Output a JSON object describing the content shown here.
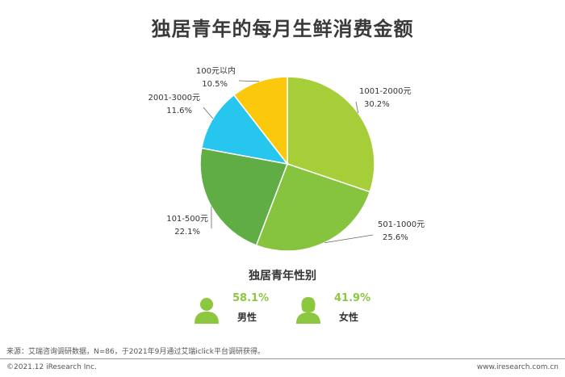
{
  "title": "独居青年的每月生鲜消费金额",
  "chart_data": {
    "type": "pie",
    "title": "独居青年的每月生鲜消费金额",
    "slices": [
      {
        "label": "1001-2000元",
        "value": 30.2,
        "value_label": "30.2%",
        "color": "#a6ce39"
      },
      {
        "label": "501-1000元",
        "value": 25.6,
        "value_label": "25.6%",
        "color": "#86c440"
      },
      {
        "label": "101-500元",
        "value": 22.1,
        "value_label": "22.1%",
        "color": "#5fad44"
      },
      {
        "label": "2001-3000元",
        "value": 11.6,
        "value_label": "11.6%",
        "color": "#26c6ee"
      },
      {
        "label": "100元以内",
        "value": 10.5,
        "value_label": "10.5%",
        "color": "#fcc80b"
      }
    ]
  },
  "gender": {
    "title": "独居青年性别",
    "male": {
      "percent": "58.1%",
      "label": "男性",
      "color": "#8dc63f",
      "icon": "male-person-icon"
    },
    "female": {
      "percent": "41.9%",
      "label": "女性",
      "color": "#8dc63f",
      "icon": "female-person-icon"
    }
  },
  "source": "来源：艾瑞咨询调研数据，N=86，于2021年9月通过艾瑞iclick平台调研获得。",
  "footer": {
    "copyright": "©2021.12 iResearch Inc.",
    "website": "www.iresearch.com.cn"
  }
}
